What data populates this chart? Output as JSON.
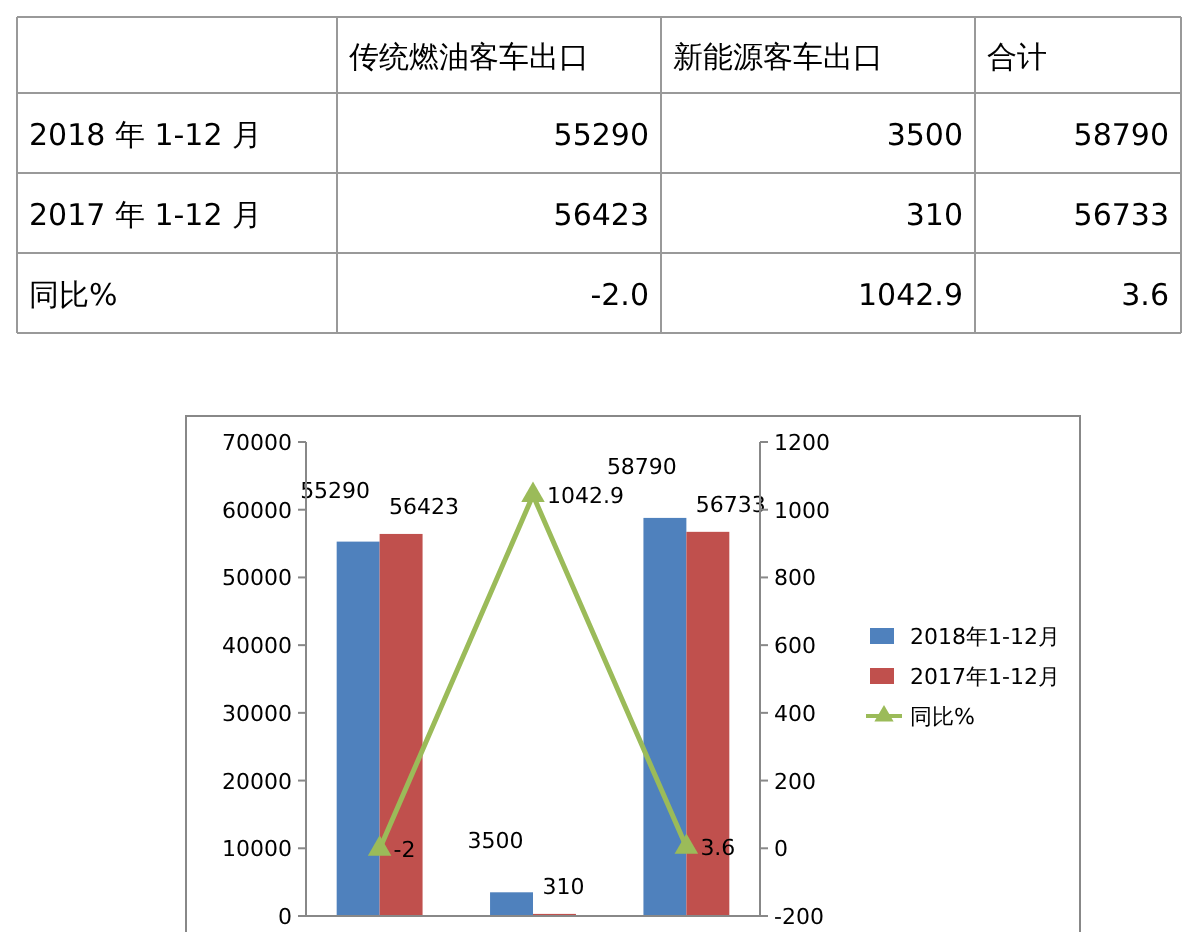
{
  "chart_data": [
    {
      "type": "other",
      "categories": [
        "传统燃油客车出口",
        "新能源客车出口",
        "合计"
      ],
      "y_categories": [
        "2018 年 1-12 月",
        "2017 年 1-12 月",
        "同比%"
      ],
      "cell_labels": [
        [
          "55290",
          "3500",
          "58790"
        ],
        [
          "56423",
          "310",
          "56733"
        ],
        [
          "-2.0",
          "1042.9",
          "3.6"
        ]
      ]
    },
    {
      "type": "bar",
      "categories": [
        null,
        null,
        null
      ],
      "series": [
        {
          "name": "2018年1-12月",
          "color": "#4f81bd",
          "values": [
            55290,
            3500,
            58790
          ]
        },
        {
          "name": "2017年1-12月",
          "color": "#c0504d",
          "values": [
            56423,
            310,
            56733
          ]
        },
        {
          "name": "同比%",
          "type": "line",
          "axis": "y2",
          "color": "#9bbb59",
          "values": [
            -2,
            1042.9,
            3.6
          ]
        }
      ],
      "ylim": [
        0,
        70000
      ],
      "yticks": [
        0,
        10000,
        20000,
        30000,
        40000,
        50000,
        60000,
        70000
      ],
      "y2lim": [
        -200,
        1200
      ],
      "y2ticks": [
        -200,
        0,
        200,
        400,
        600,
        800,
        1000,
        1200
      ],
      "data_labels": true,
      "legend": "right",
      "marker": "triangle",
      "grid": false
    }
  ]
}
